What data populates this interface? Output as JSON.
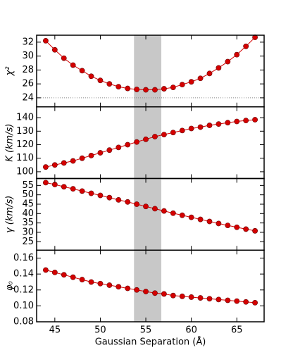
{
  "chart_data": [
    {
      "type": "line",
      "ylabel": "χ²",
      "x": [
        44,
        45,
        46,
        47,
        48,
        49,
        50,
        51,
        52,
        53,
        54,
        55,
        56,
        57,
        58,
        59,
        60,
        61,
        62,
        63,
        64,
        65,
        66,
        67
      ],
      "series": [
        {
          "color": "#d40000",
          "values": [
            32.2,
            30.9,
            29.7,
            28.7,
            27.9,
            27.1,
            26.5,
            26.0,
            25.6,
            25.35,
            25.2,
            25.15,
            25.15,
            25.3,
            25.5,
            25.9,
            26.3,
            26.8,
            27.5,
            28.3,
            29.2,
            30.2,
            31.4,
            32.7
          ]
        }
      ],
      "xlim": [
        43,
        68
      ],
      "xticks": [
        45,
        50,
        55,
        60,
        65
      ],
      "ylim": [
        22.7,
        33
      ],
      "yticks": [
        24,
        26,
        28,
        30,
        32
      ],
      "highlight": [
        53.7,
        56.7
      ],
      "hline": 24
    },
    {
      "type": "line",
      "ylabel": "K (km/s)",
      "x": [
        44,
        45,
        46,
        47,
        48,
        49,
        50,
        51,
        52,
        53,
        54,
        55,
        56,
        57,
        58,
        59,
        60,
        61,
        62,
        63,
        64,
        65,
        66,
        67
      ],
      "series": [
        {
          "color": "#d40000",
          "values": [
            103.5,
            105,
            106.5,
            108,
            110,
            112,
            114,
            116,
            118,
            120,
            122,
            124,
            126,
            127.5,
            129,
            130.5,
            132,
            133,
            134.3,
            135.3,
            136.3,
            137.2,
            137.9,
            138.5
          ]
        }
      ],
      "xlim": [
        43,
        68
      ],
      "xticks": [
        45,
        50,
        55,
        60,
        65
      ],
      "ylim": [
        95,
        148
      ],
      "yticks": [
        100,
        110,
        120,
        130,
        140
      ],
      "highlight": [
        53.7,
        56.7
      ]
    },
    {
      "type": "line",
      "ylabel": "γ (km/s)",
      "x": [
        44,
        45,
        46,
        47,
        48,
        49,
        50,
        51,
        52,
        53,
        54,
        55,
        56,
        57,
        58,
        59,
        60,
        61,
        62,
        63,
        64,
        65,
        66,
        67
      ],
      "series": [
        {
          "color": "#d40000",
          "values": [
            56.5,
            55.5,
            54.3,
            53.2,
            52,
            50.8,
            49.7,
            48.5,
            47.3,
            46.2,
            45,
            43.8,
            42.6,
            41.4,
            40.2,
            39.1,
            38,
            36.9,
            35.8,
            34.7,
            33.7,
            32.7,
            31.7,
            30.8
          ]
        }
      ],
      "xlim": [
        43,
        68
      ],
      "xticks": [
        45,
        50,
        55,
        60,
        65
      ],
      "ylim": [
        20.5,
        58.7
      ],
      "yticks": [
        25,
        30,
        35,
        40,
        45,
        50,
        55
      ],
      "highlight": [
        53.7,
        56.7
      ]
    },
    {
      "type": "line",
      "ylabel": "φ₀",
      "xlabel": "Gaussian Separation (Å)",
      "x": [
        44,
        45,
        46,
        47,
        48,
        49,
        50,
        51,
        52,
        53,
        54,
        55,
        56,
        57,
        58,
        59,
        60,
        61,
        62,
        63,
        64,
        65,
        66,
        67
      ],
      "series": [
        {
          "color": "#d40000",
          "values": [
            0.145,
            0.142,
            0.139,
            0.136,
            0.133,
            0.13,
            0.128,
            0.126,
            0.124,
            0.122,
            0.12,
            0.118,
            0.116,
            0.115,
            0.113,
            0.112,
            0.111,
            0.11,
            0.109,
            0.108,
            0.107,
            0.106,
            0.105,
            0.104
          ]
        }
      ],
      "xlim": [
        43,
        68
      ],
      "xticks": [
        45,
        50,
        55,
        60,
        65
      ],
      "ylim": [
        0.08,
        0.17
      ],
      "yticks": [
        0.08,
        {
          "value": 0.1,
          "label": "0.10"
        },
        0.12,
        0.14,
        0.16
      ],
      "highlight": [
        53.7,
        56.7
      ]
    }
  ]
}
